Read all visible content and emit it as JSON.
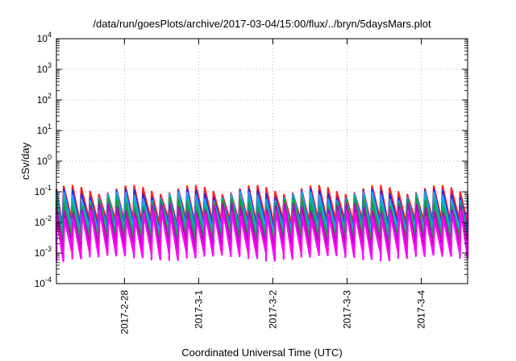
{
  "chart_data": {
    "type": "line",
    "title": "/data/run/goesPlots/archive/2017-03-04/15:00/flux/../bryn/5daysMars.plot",
    "xlabel": "Coordinated Universal Time (UTC)",
    "ylabel": "cSv/day",
    "y_scale": "log",
    "ylim_exponents": [
      -4,
      4
    ],
    "y_tick_exponents": [
      -4,
      -3,
      -2,
      -1,
      0,
      1,
      2,
      3,
      4
    ],
    "y_tick_base": "10",
    "xlim": [
      "2017-02-27T02:00",
      "2017-03-04T15:00"
    ],
    "x_ticks": [
      {
        "date": "2017-02-28T00:00",
        "label": "2017-2-28"
      },
      {
        "date": "2017-03-01T00:00",
        "label": "2017-3-1"
      },
      {
        "date": "2017-03-02T00:00",
        "label": "2017-3-2"
      },
      {
        "date": "2017-03-03T00:00",
        "label": "2017-3-3"
      },
      {
        "date": "2017-03-04T00:00",
        "label": "2017-3-4"
      }
    ],
    "grid": true,
    "legend": "none",
    "spike_period_hours": 2.85,
    "series": [
      {
        "color": "#ff2020",
        "peak": 0.16,
        "trough": 0.012
      },
      {
        "color": "#2a2ad8",
        "peak": 0.12,
        "trough": 0.008
      },
      {
        "color": "#20a0ff",
        "peak": 0.1,
        "trough": 0.006
      },
      {
        "color": "#00b8a0",
        "peak": 0.075,
        "trough": 0.004
      },
      {
        "color": "#10a040",
        "peak": 0.06,
        "trough": 0.003
      },
      {
        "color": "#c000c0",
        "peak": 0.04,
        "trough": 0.0018
      },
      {
        "color": "#ff00ff",
        "peak": 0.025,
        "trough": 0.0009
      }
    ]
  }
}
